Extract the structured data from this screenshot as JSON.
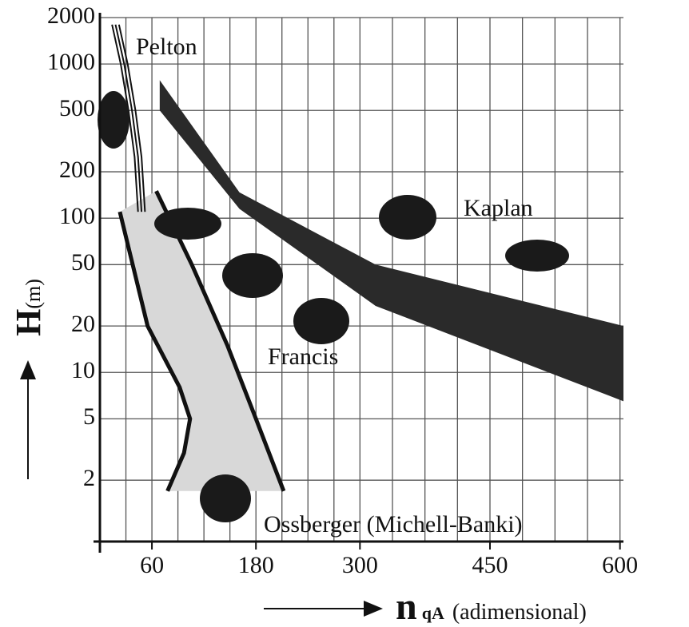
{
  "chart_data": {
    "type": "line",
    "log_y": true,
    "grid": true,
    "xlim": [
      0,
      604
    ],
    "ylim": [
      0.8,
      2000
    ],
    "xticks": [
      60,
      180,
      300,
      450,
      600
    ],
    "yticks": [
      2,
      5,
      10,
      20,
      50,
      100,
      200,
      500,
      1000,
      2000
    ],
    "xgrid": [
      30,
      60,
      90,
      120,
      150,
      180,
      210,
      240,
      270,
      300,
      337.5,
      375,
      412.5,
      450,
      487.5,
      525,
      562.5,
      600
    ],
    "y_label": "H",
    "y_label_unit": "(m)",
    "x_label": "n",
    "x_label_sub": "qA",
    "x_label_unit": "(adimensional)",
    "annotations": [
      "Pelton",
      "Kaplan",
      "Francis",
      "Ossberger (Michell-Banki)"
    ],
    "pelton_lines": [
      {
        "x": [
          14,
          24,
          33,
          40,
          44
        ],
        "values": [
          1800,
          1000,
          500,
          250,
          110
        ]
      },
      {
        "x": [
          18,
          28,
          37,
          44,
          48
        ],
        "values": [
          1800,
          1000,
          500,
          250,
          110
        ]
      },
      {
        "x": [
          22,
          32,
          41,
          48,
          52
        ],
        "values": [
          1800,
          1000,
          500,
          250,
          110
        ]
      }
    ],
    "francis_bounds": [
      {
        "x": [
          23,
          55,
          92,
          104,
          97,
          78
        ],
        "values": [
          110,
          20,
          8,
          5,
          3,
          1.7
        ]
      },
      {
        "x": [
          65,
          106,
          147,
          180,
          212
        ],
        "values": [
          150,
          50,
          15,
          5,
          1.7
        ]
      }
    ],
    "kaplan_band": {
      "x": [
        69,
        161,
        318,
        604
      ],
      "upper": [
        785,
        147,
        50,
        20
      ],
      "lower": [
        500,
        115,
        27,
        6.5
      ]
    },
    "color": "#111111",
    "fill_color": "#2a2a2a",
    "francis_fill": "#d8d8d8"
  }
}
